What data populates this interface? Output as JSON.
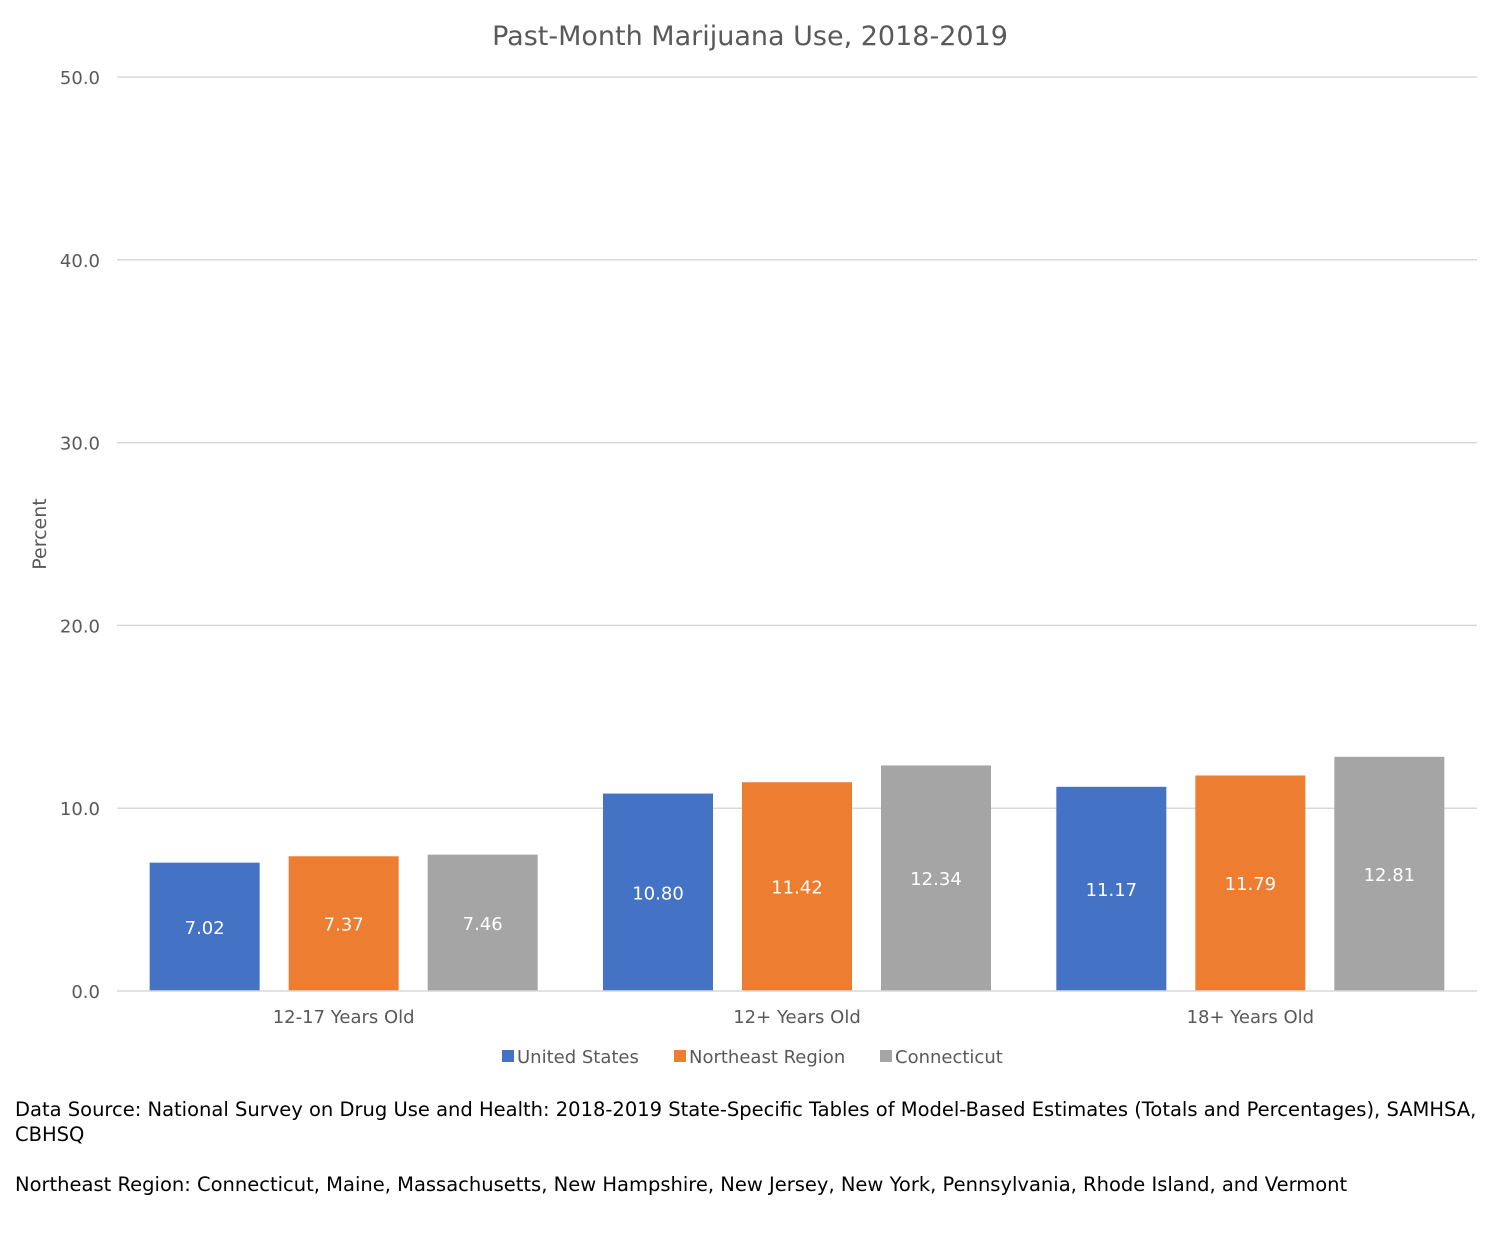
{
  "chart_data": {
    "type": "bar",
    "title": "Past-Month Marijuana Use, 2018-2019",
    "xlabel": "",
    "ylabel": "Percent",
    "ylim": [
      0,
      50
    ],
    "yticks": [
      0,
      10,
      20,
      30,
      40,
      50
    ],
    "ytick_labels": [
      "0.0",
      "10.0",
      "20.0",
      "30.0",
      "40.0",
      "50.0"
    ],
    "grid": true,
    "legend_position": "bottom",
    "categories": [
      "12-17 Years Old",
      "12+ Years Old",
      "18+ Years Old"
    ],
    "series": [
      {
        "name": "United States",
        "color": "#4472C4",
        "values": [
          7.02,
          10.8,
          11.17
        ],
        "labels": [
          "7.02",
          "10.80",
          "11.17"
        ]
      },
      {
        "name": "Northeast Region",
        "color": "#ED7D31",
        "values": [
          7.37,
          11.42,
          11.79
        ],
        "labels": [
          "7.37",
          "11.42",
          "11.79"
        ]
      },
      {
        "name": "Connecticut",
        "color": "#A5A5A5",
        "values": [
          7.46,
          12.34,
          12.81
        ],
        "labels": [
          "7.46",
          "12.34",
          "12.81"
        ]
      }
    ]
  },
  "notes": {
    "source": "Data Source: National Survey on Drug Use and Health: 2018-2019 State-Specific Tables of Model-Based Estimates (Totals and Percentages), SAMHSA, CBHSQ",
    "region": "Northeast Region: Connecticut, Maine, Massachusetts, New Hampshire, New Jersey, New York, Pennsylvania, Rhode Island, and Vermont"
  }
}
